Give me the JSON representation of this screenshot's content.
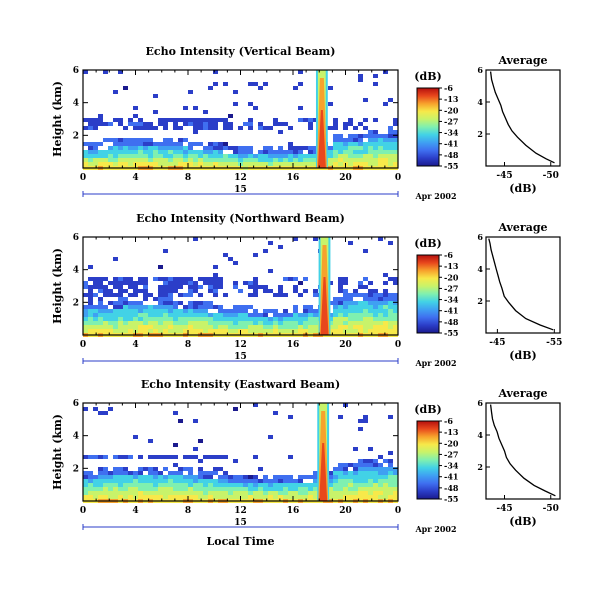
{
  "colors": {
    "colormap": [
      "#1b1a8e",
      "#2b3ec8",
      "#3f6ff0",
      "#3fa0f2",
      "#42d2e6",
      "#7ff0b0",
      "#c8f36a",
      "#f7e94a",
      "#f7a22c",
      "#e8471c",
      "#b5100e"
    ],
    "axis": "#000000",
    "profile_line": "#000000"
  },
  "chart_data": [
    {
      "type": "heatmap",
      "title": "Echo Intensity (Vertical Beam)",
      "ylabel": "Height (km)",
      "xlabel": "",
      "x_ticks": [
        "0",
        "4",
        "8",
        "12",
        "16",
        "20",
        "0"
      ],
      "x_range": [
        0,
        24
      ],
      "y_ticks": [
        "2",
        "4",
        "6"
      ],
      "y_range": [
        0,
        6
      ],
      "date_day": "15",
      "date_label": "Apr 2002",
      "colorbar": {
        "unit": "(dB)",
        "ticks": [
          "-6",
          "-13",
          "-20",
          "-27",
          "-34",
          "-41",
          "-48",
          "-55"
        ],
        "range": [
          -55,
          -6
        ]
      },
      "features": {
        "boundary_layer_top_km": 1.2,
        "scattered_layer_km": [
          2.5,
          3.2
        ],
        "precip_column_hour": 18.2,
        "precip_column_width_h": 0.9
      }
    },
    {
      "type": "line",
      "title": "Average",
      "xlabel": "(dB)",
      "x_ticks": [
        "-45",
        "-50"
      ],
      "y_ticks": [
        "2",
        "4",
        "6"
      ],
      "x_range": [
        -43,
        -51
      ],
      "y_range": [
        0,
        6
      ],
      "series": [
        {
          "x": [
            -50.4,
            -49.5,
            -48.4,
            -47.3,
            -46.4,
            -45.8,
            -45.4,
            -45.1,
            -44.8,
            -44.6,
            -44.3,
            -44.0,
            -43.8,
            -43.6,
            -43.5
          ],
          "y": [
            0.2,
            0.45,
            0.8,
            1.3,
            1.8,
            2.2,
            2.6,
            3.0,
            3.4,
            3.8,
            4.2,
            4.6,
            5.0,
            5.4,
            5.9
          ]
        }
      ]
    },
    {
      "type": "heatmap",
      "title": "Echo Intensity (Northward Beam)",
      "ylabel": "Height (km)",
      "xlabel": "",
      "x_ticks": [
        "0",
        "4",
        "8",
        "12",
        "16",
        "20",
        "0"
      ],
      "x_range": [
        0,
        24
      ],
      "y_ticks": [
        "2",
        "4",
        "6"
      ],
      "y_range": [
        0,
        6
      ],
      "date_day": "15",
      "date_label": "Apr 2002",
      "colorbar": {
        "unit": "(dB)",
        "ticks": [
          "-6",
          "-13",
          "-20",
          "-27",
          "-34",
          "-41",
          "-48",
          "-55"
        ],
        "range": [
          -55,
          -6
        ]
      },
      "features": {
        "boundary_layer_top_km": 1.6,
        "scattered_layer_km": [
          2.4,
          3.6
        ],
        "precip_column_hour": 18.4,
        "precip_column_width_h": 0.9
      }
    },
    {
      "type": "line",
      "title": "Average",
      "xlabel": "(dB)",
      "x_ticks": [
        "-45",
        "-55"
      ],
      "y_ticks": [
        "2",
        "4",
        "6"
      ],
      "x_range": [
        -43,
        -56
      ],
      "y_range": [
        0,
        6
      ],
      "series": [
        {
          "x": [
            -54.8,
            -52.5,
            -50.0,
            -48.2,
            -47.0,
            -46.2,
            -45.8,
            -45.4,
            -45.1,
            -44.8,
            -44.5,
            -44.2,
            -43.9,
            -43.7,
            -43.5
          ],
          "y": [
            0.2,
            0.5,
            0.9,
            1.4,
            1.9,
            2.3,
            2.8,
            3.2,
            3.6,
            4.0,
            4.4,
            4.8,
            5.2,
            5.6,
            5.9
          ]
        }
      ]
    },
    {
      "type": "heatmap",
      "title": "Echo Intensity (Eastward Beam)",
      "ylabel": "Height (km)",
      "xlabel": "Local Time",
      "x_ticks": [
        "0",
        "4",
        "8",
        "12",
        "16",
        "20",
        "0"
      ],
      "x_range": [
        0,
        24
      ],
      "y_ticks": [
        "2",
        "4",
        "6"
      ],
      "y_range": [
        0,
        6
      ],
      "date_day": "15",
      "date_label": "Apr 2002",
      "colorbar": {
        "unit": "(dB)",
        "ticks": [
          "-6",
          "-13",
          "-20",
          "-27",
          "-34",
          "-41",
          "-48",
          "-55"
        ],
        "range": [
          -55,
          -6
        ]
      },
      "features": {
        "boundary_layer_top_km": 1.5,
        "scattered_layer_km": [
          2.6,
          3.0
        ],
        "precip_column_hour": 18.3,
        "precip_column_width_h": 0.9
      }
    },
    {
      "type": "line",
      "title": "Average",
      "xlabel": "(dB)",
      "x_ticks": [
        "-45",
        "-50"
      ],
      "y_ticks": [
        "2",
        "4",
        "6"
      ],
      "x_range": [
        -43,
        -51
      ],
      "y_range": [
        0,
        6
      ],
      "series": [
        {
          "x": [
            -50.5,
            -49.4,
            -48.2,
            -47.1,
            -46.2,
            -45.6,
            -45.2,
            -45.0,
            -44.7,
            -44.4,
            -44.2,
            -43.9,
            -43.7,
            -43.6,
            -43.5
          ],
          "y": [
            0.2,
            0.5,
            0.85,
            1.3,
            1.8,
            2.2,
            2.6,
            3.0,
            3.4,
            3.8,
            4.2,
            4.6,
            5.0,
            5.4,
            5.9
          ]
        }
      ]
    }
  ]
}
